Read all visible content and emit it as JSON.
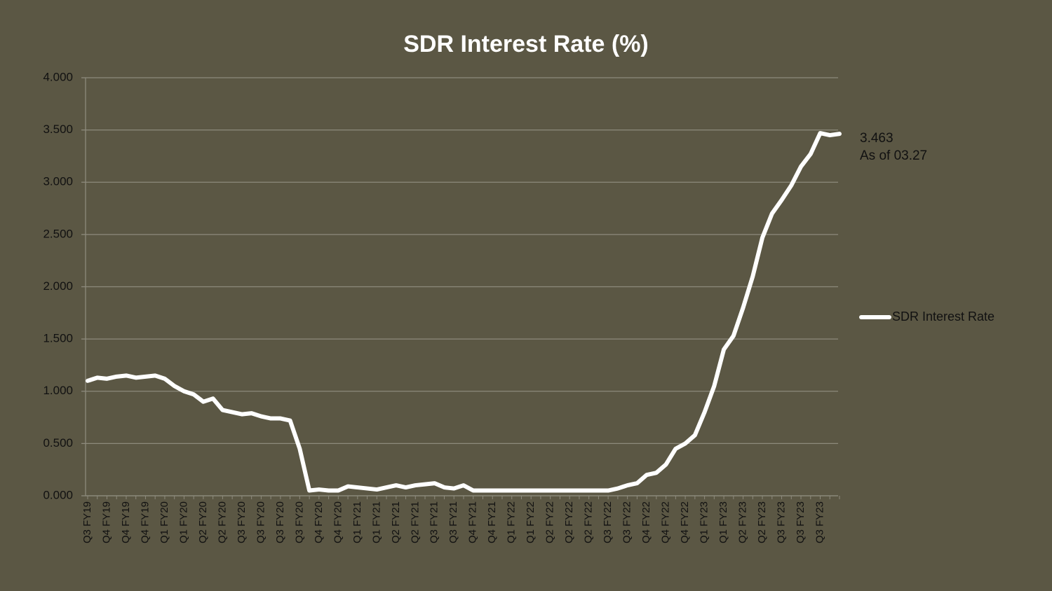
{
  "chart_data": {
    "type": "line",
    "title": "SDR Interest Rate (%)",
    "annotation": "As of 03.27",
    "categories": [
      "Q3 FY19",
      null,
      "Q4 FY19",
      null,
      "Q4 FY19",
      null,
      "Q4 FY19",
      null,
      "Q1 FY20",
      null,
      "Q1 FY20",
      null,
      "Q2 FY20",
      null,
      "Q2 FY20",
      null,
      "Q3 FY20",
      null,
      "Q3 FY20",
      null,
      "Q3 FY20",
      null,
      "Q3 FY20",
      null,
      "Q4 FY20",
      null,
      "Q4 FY20",
      null,
      "Q1 FY21",
      null,
      "Q1 FY21",
      null,
      "Q2 FY21",
      null,
      "Q2 FY21",
      null,
      "Q3 FY21",
      null,
      "Q3 FY21",
      null,
      "Q4 FY21",
      null,
      "Q4 FY21",
      null,
      "Q1 FY22",
      null,
      "Q1 FY22",
      null,
      "Q2 FY22",
      null,
      "Q2 FY22",
      null,
      "Q2 FY22",
      null,
      "Q3 FY22",
      null,
      "Q3 FY22",
      null,
      "Q4 FY22",
      null,
      "Q4 FY22",
      null,
      "Q4 FY22",
      null,
      "Q1 FY23",
      null,
      "Q1 FY23",
      null,
      "Q2 FY23",
      null,
      "Q2 FY23",
      null,
      "Q3 FY23",
      null,
      "Q3 FY23",
      null,
      "Q3 FY23",
      null,
      null
    ],
    "series": [
      {
        "name": "SDR Interest Rate",
        "color": "#ffffff",
        "values": [
          1.1,
          1.13,
          1.12,
          1.14,
          1.15,
          1.13,
          1.14,
          1.15,
          1.12,
          1.05,
          1.0,
          0.97,
          0.9,
          0.93,
          0.82,
          0.8,
          0.78,
          0.79,
          0.76,
          0.74,
          0.74,
          0.72,
          0.45,
          0.05,
          0.06,
          0.05,
          0.05,
          0.09,
          0.08,
          0.07,
          0.06,
          0.08,
          0.1,
          0.08,
          0.1,
          0.11,
          0.12,
          0.08,
          0.07,
          0.1,
          0.05,
          0.05,
          0.05,
          0.05,
          0.05,
          0.05,
          0.05,
          0.05,
          0.05,
          0.05,
          0.05,
          0.05,
          0.05,
          0.05,
          0.05,
          0.07,
          0.1,
          0.12,
          0.2,
          0.22,
          0.3,
          0.45,
          0.5,
          0.58,
          0.8,
          1.05,
          1.4,
          1.53,
          1.8,
          2.1,
          2.47,
          2.7,
          2.83,
          2.97,
          3.15,
          3.27,
          3.47,
          3.45,
          3.463
        ]
      }
    ],
    "ylim": [
      0,
      4
    ],
    "yticks": [
      {
        "value": 0,
        "label": "0.000"
      },
      {
        "value": 0.5,
        "label": "0.500"
      },
      {
        "value": 1,
        "label": "1.000"
      },
      {
        "value": 1.5,
        "label": "1.500"
      },
      {
        "value": 2,
        "label": "2.000"
      },
      {
        "value": 2.5,
        "label": "2.500"
      },
      {
        "value": 3,
        "label": "3.000"
      },
      {
        "value": 3.5,
        "label": "3.500"
      },
      {
        "value": 4,
        "label": "4.000"
      }
    ],
    "grid": true,
    "legend": "right"
  }
}
